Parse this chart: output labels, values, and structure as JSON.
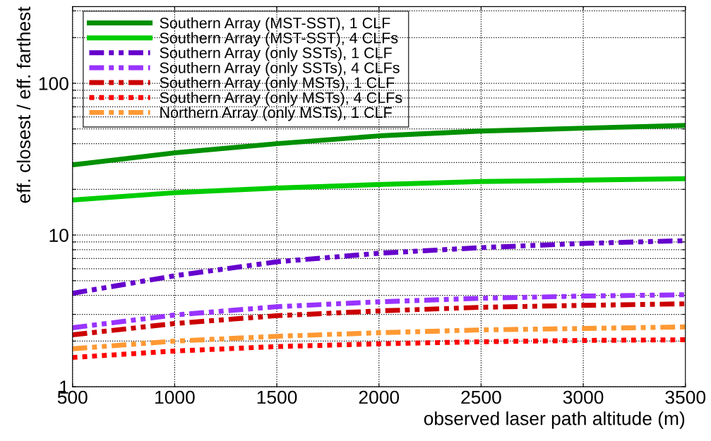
{
  "chart_data": {
    "type": "line",
    "xlabel": "observed laser path altitude (m)",
    "ylabel": "eff. closest / eff. farthest",
    "x": [
      500,
      1000,
      1500,
      2000,
      2500,
      3000,
      3500
    ],
    "series": [
      {
        "name": "Southern Array (MST-SST), 1 CLF",
        "color": "#009000",
        "line_style": "solid",
        "values": [
          29.0,
          34.8,
          40.0,
          45.0,
          48.4,
          50.6,
          52.7
        ]
      },
      {
        "name": "Southern Array (MST-SST), 4 CLFs",
        "color": "#00cc00",
        "line_style": "solid",
        "values": [
          17.0,
          19.0,
          20.4,
          21.5,
          22.5,
          23.0,
          23.5
        ]
      },
      {
        "name": "Southern Array (only SSTs), 1 CLF",
        "color": "#6600cc",
        "line_style": "dashed",
        "values": [
          4.13,
          5.39,
          6.66,
          7.58,
          8.26,
          8.8,
          9.18
        ]
      },
      {
        "name": "Southern Array (only SSTs), 4 CLFs",
        "color": "#9933ff",
        "line_style": "dashed",
        "values": [
          2.45,
          2.97,
          3.37,
          3.63,
          3.83,
          3.96,
          4.04
        ]
      },
      {
        "name": "Southern Array (only MSTs), 1 CLF",
        "color": "#cc0000",
        "line_style": "dashed",
        "values": [
          2.2,
          2.61,
          2.94,
          3.16,
          3.34,
          3.44,
          3.52
        ]
      },
      {
        "name": "Southern Array (only MSTs), 4 CLFs",
        "color": "#ff0000",
        "line_style": "dotted",
        "values": [
          1.56,
          1.72,
          1.84,
          1.92,
          1.98,
          2.02,
          2.04
        ]
      },
      {
        "name": "Northern Array (only MSTs), 1 CLF",
        "color": "#ff9933",
        "line_style": "dashed",
        "values": [
          1.78,
          2.0,
          2.15,
          2.27,
          2.37,
          2.42,
          2.48
        ]
      }
    ],
    "log": "y",
    "xlim": [
      500,
      3500
    ],
    "ylim": [
      1,
      320
    ],
    "xticks": [
      500,
      1000,
      1500,
      2000,
      2500,
      3000,
      3500
    ],
    "yticks": [
      1,
      {
        "value": 2,
        "label": null
      },
      {
        "value": 3,
        "label": null
      },
      {
        "value": 4,
        "label": null
      },
      {
        "value": 5,
        "label": null
      },
      {
        "value": 6,
        "label": null
      },
      {
        "value": 7,
        "label": null
      },
      {
        "value": 8,
        "label": null
      },
      {
        "value": 9,
        "label": null
      },
      10,
      {
        "value": 20,
        "label": null
      },
      {
        "value": 30,
        "label": null
      },
      {
        "value": 40,
        "label": null
      },
      {
        "value": 50,
        "label": null
      },
      {
        "value": 60,
        "label": null
      },
      {
        "value": 70,
        "label": null
      },
      {
        "value": 80,
        "label": null
      },
      {
        "value": 90,
        "label": null
      },
      100,
      {
        "value": 200,
        "label": null
      },
      {
        "value": 300,
        "label": null
      }
    ],
    "grid": true,
    "legend": "top left",
    "marker": "none"
  }
}
